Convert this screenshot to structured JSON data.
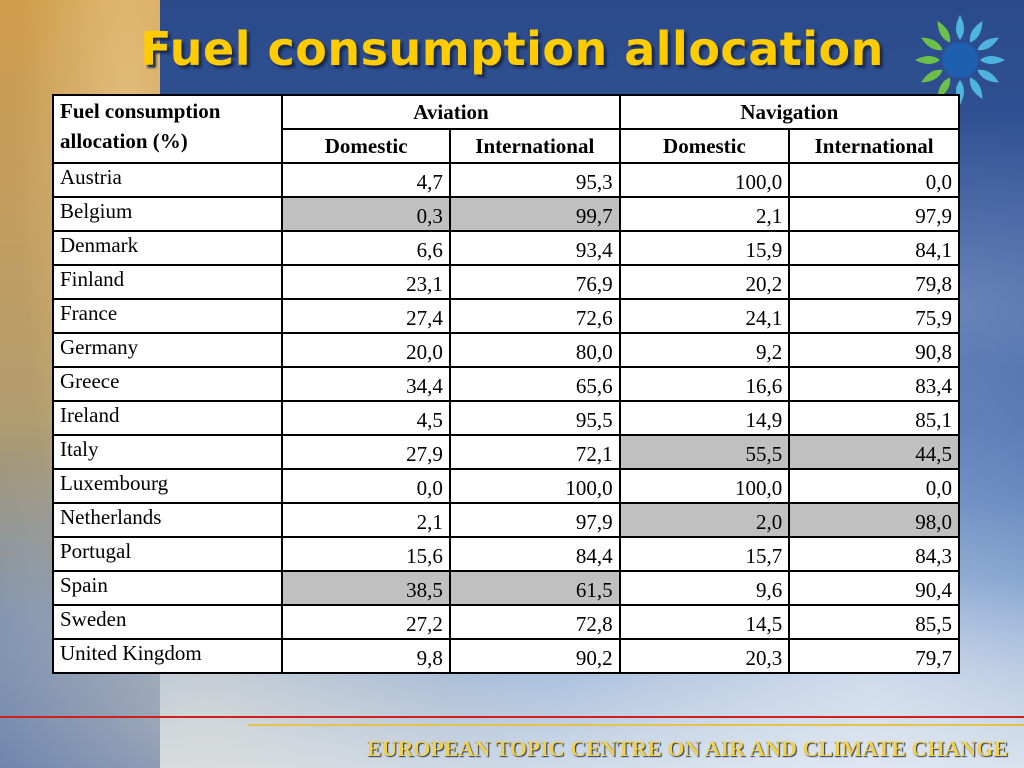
{
  "slide": {
    "title": "Fuel consumption allocation",
    "footer": "EUROPEAN TOPIC CENTRE ON AIR AND CLIMATE CHANGE"
  },
  "table": {
    "corner_label": "Fuel consumption allocation (%)",
    "groups": [
      "Aviation",
      "Navigation"
    ],
    "subheaders": [
      "Domestic",
      "International",
      "Domestic",
      "International"
    ],
    "rows": [
      {
        "country": "Austria",
        "values": [
          "4,7",
          "95,3",
          "100,0",
          "0,0"
        ]
      },
      {
        "country": "Belgium",
        "values": [
          "0,3",
          "99,7",
          "2,1",
          "97,9"
        ]
      },
      {
        "country": "Denmark",
        "values": [
          "6,6",
          "93,4",
          "15,9",
          "84,1"
        ]
      },
      {
        "country": "Finland",
        "values": [
          "23,1",
          "76,9",
          "20,2",
          "79,8"
        ]
      },
      {
        "country": "France",
        "values": [
          "27,4",
          "72,6",
          "24,1",
          "75,9"
        ]
      },
      {
        "country": "Germany",
        "values": [
          "20,0",
          "80,0",
          "9,2",
          "90,8"
        ]
      },
      {
        "country": "Greece",
        "values": [
          "34,4",
          "65,6",
          "16,6",
          "83,4"
        ]
      },
      {
        "country": "Ireland",
        "values": [
          "4,5",
          "95,5",
          "14,9",
          "85,1"
        ]
      },
      {
        "country": "Italy",
        "values": [
          "27,9",
          "72,1",
          "55,5",
          "44,5"
        ]
      },
      {
        "country": "Luxembourg",
        "values": [
          "0,0",
          "100,0",
          "100,0",
          "0,0"
        ]
      },
      {
        "country": "Netherlands",
        "values": [
          "2,1",
          "97,9",
          "2,0",
          "98,0"
        ]
      },
      {
        "country": "Portugal",
        "values": [
          "15,6",
          "84,4",
          "15,7",
          "84,3"
        ]
      },
      {
        "country": "Spain",
        "values": [
          "38,5",
          "61,5",
          "9,6",
          "90,4"
        ]
      },
      {
        "country": "Sweden",
        "values": [
          "27,2",
          "72,8",
          "14,5",
          "85,5"
        ]
      },
      {
        "country": "United Kingdom",
        "values": [
          "9,8",
          "90,2",
          "20,3",
          "79,7"
        ]
      }
    ],
    "highlighted_cells": {
      "Belgium": [
        0,
        1
      ],
      "Italy": [
        2,
        3
      ],
      "Netherlands": [
        2,
        3
      ],
      "Spain": [
        0,
        1
      ]
    },
    "highlight_color": "#c0c0c0"
  },
  "colors": {
    "title": "#ffcc00",
    "footer_text": "#f0d050",
    "footer_rule": "#d0201c"
  }
}
